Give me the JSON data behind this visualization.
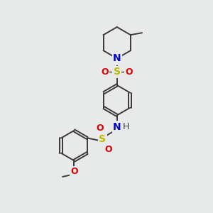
{
  "bg_color": "#e8eaea",
  "bond_color": "#3a3a3a",
  "N_color": "#0000cc",
  "S_color": "#bbbb00",
  "O_color": "#dd0000",
  "font_size_atom": 10,
  "font_size_small": 8,
  "fig_width": 3.0,
  "fig_height": 3.0,
  "xlim": [
    0,
    10
  ],
  "ylim": [
    0,
    10
  ]
}
